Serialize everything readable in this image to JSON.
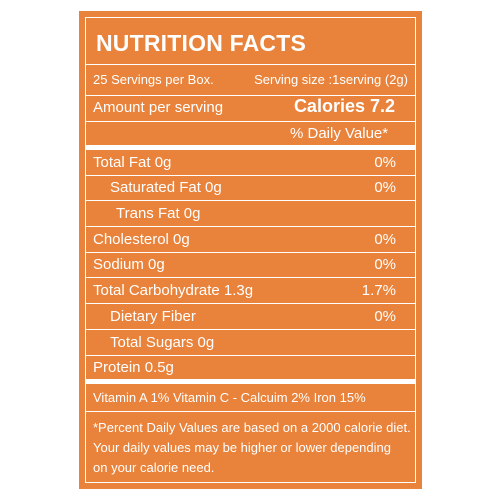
{
  "title": "NUTRITION FACTS",
  "servings_per_container": "25 Servings per Box.",
  "serving_size": "Serving size :1serving (2g)",
  "amount_per_serving": "Amount per serving",
  "calories": "Calories 7.2",
  "daily_value_header": "% Daily Value*",
  "nutrients": [
    {
      "name": "Total Fat 0g",
      "dv": "0%"
    },
    {
      "name": "Saturated Fat 0g",
      "dv": "0%"
    },
    {
      "name": "Trans  Fat 0g",
      "dv": ""
    },
    {
      "name": "Cholesterol 0g",
      "dv": "0%"
    },
    {
      "name": "Sodium 0g",
      "dv": "0%"
    },
    {
      "name": "Total Carbohydrate 1.3g",
      "dv": "1.7%"
    },
    {
      "name": "Dietary Fiber",
      "dv": "0%"
    },
    {
      "name": "Total Sugars 0g",
      "dv": ""
    },
    {
      "name": "Protein 0.5g",
      "dv": ""
    }
  ],
  "vitamins": "Vitamin A 1%  Vitamin C -  Calcuim 2%  Iron 15%",
  "footnote": [
    "*Percent Daily Values are based on a 2000 calorie diet.",
    "Your daily values may be higher or lower depending",
    "on your calorie need."
  ],
  "colors": {
    "background": "#e9823a",
    "text": "#ffffff"
  }
}
